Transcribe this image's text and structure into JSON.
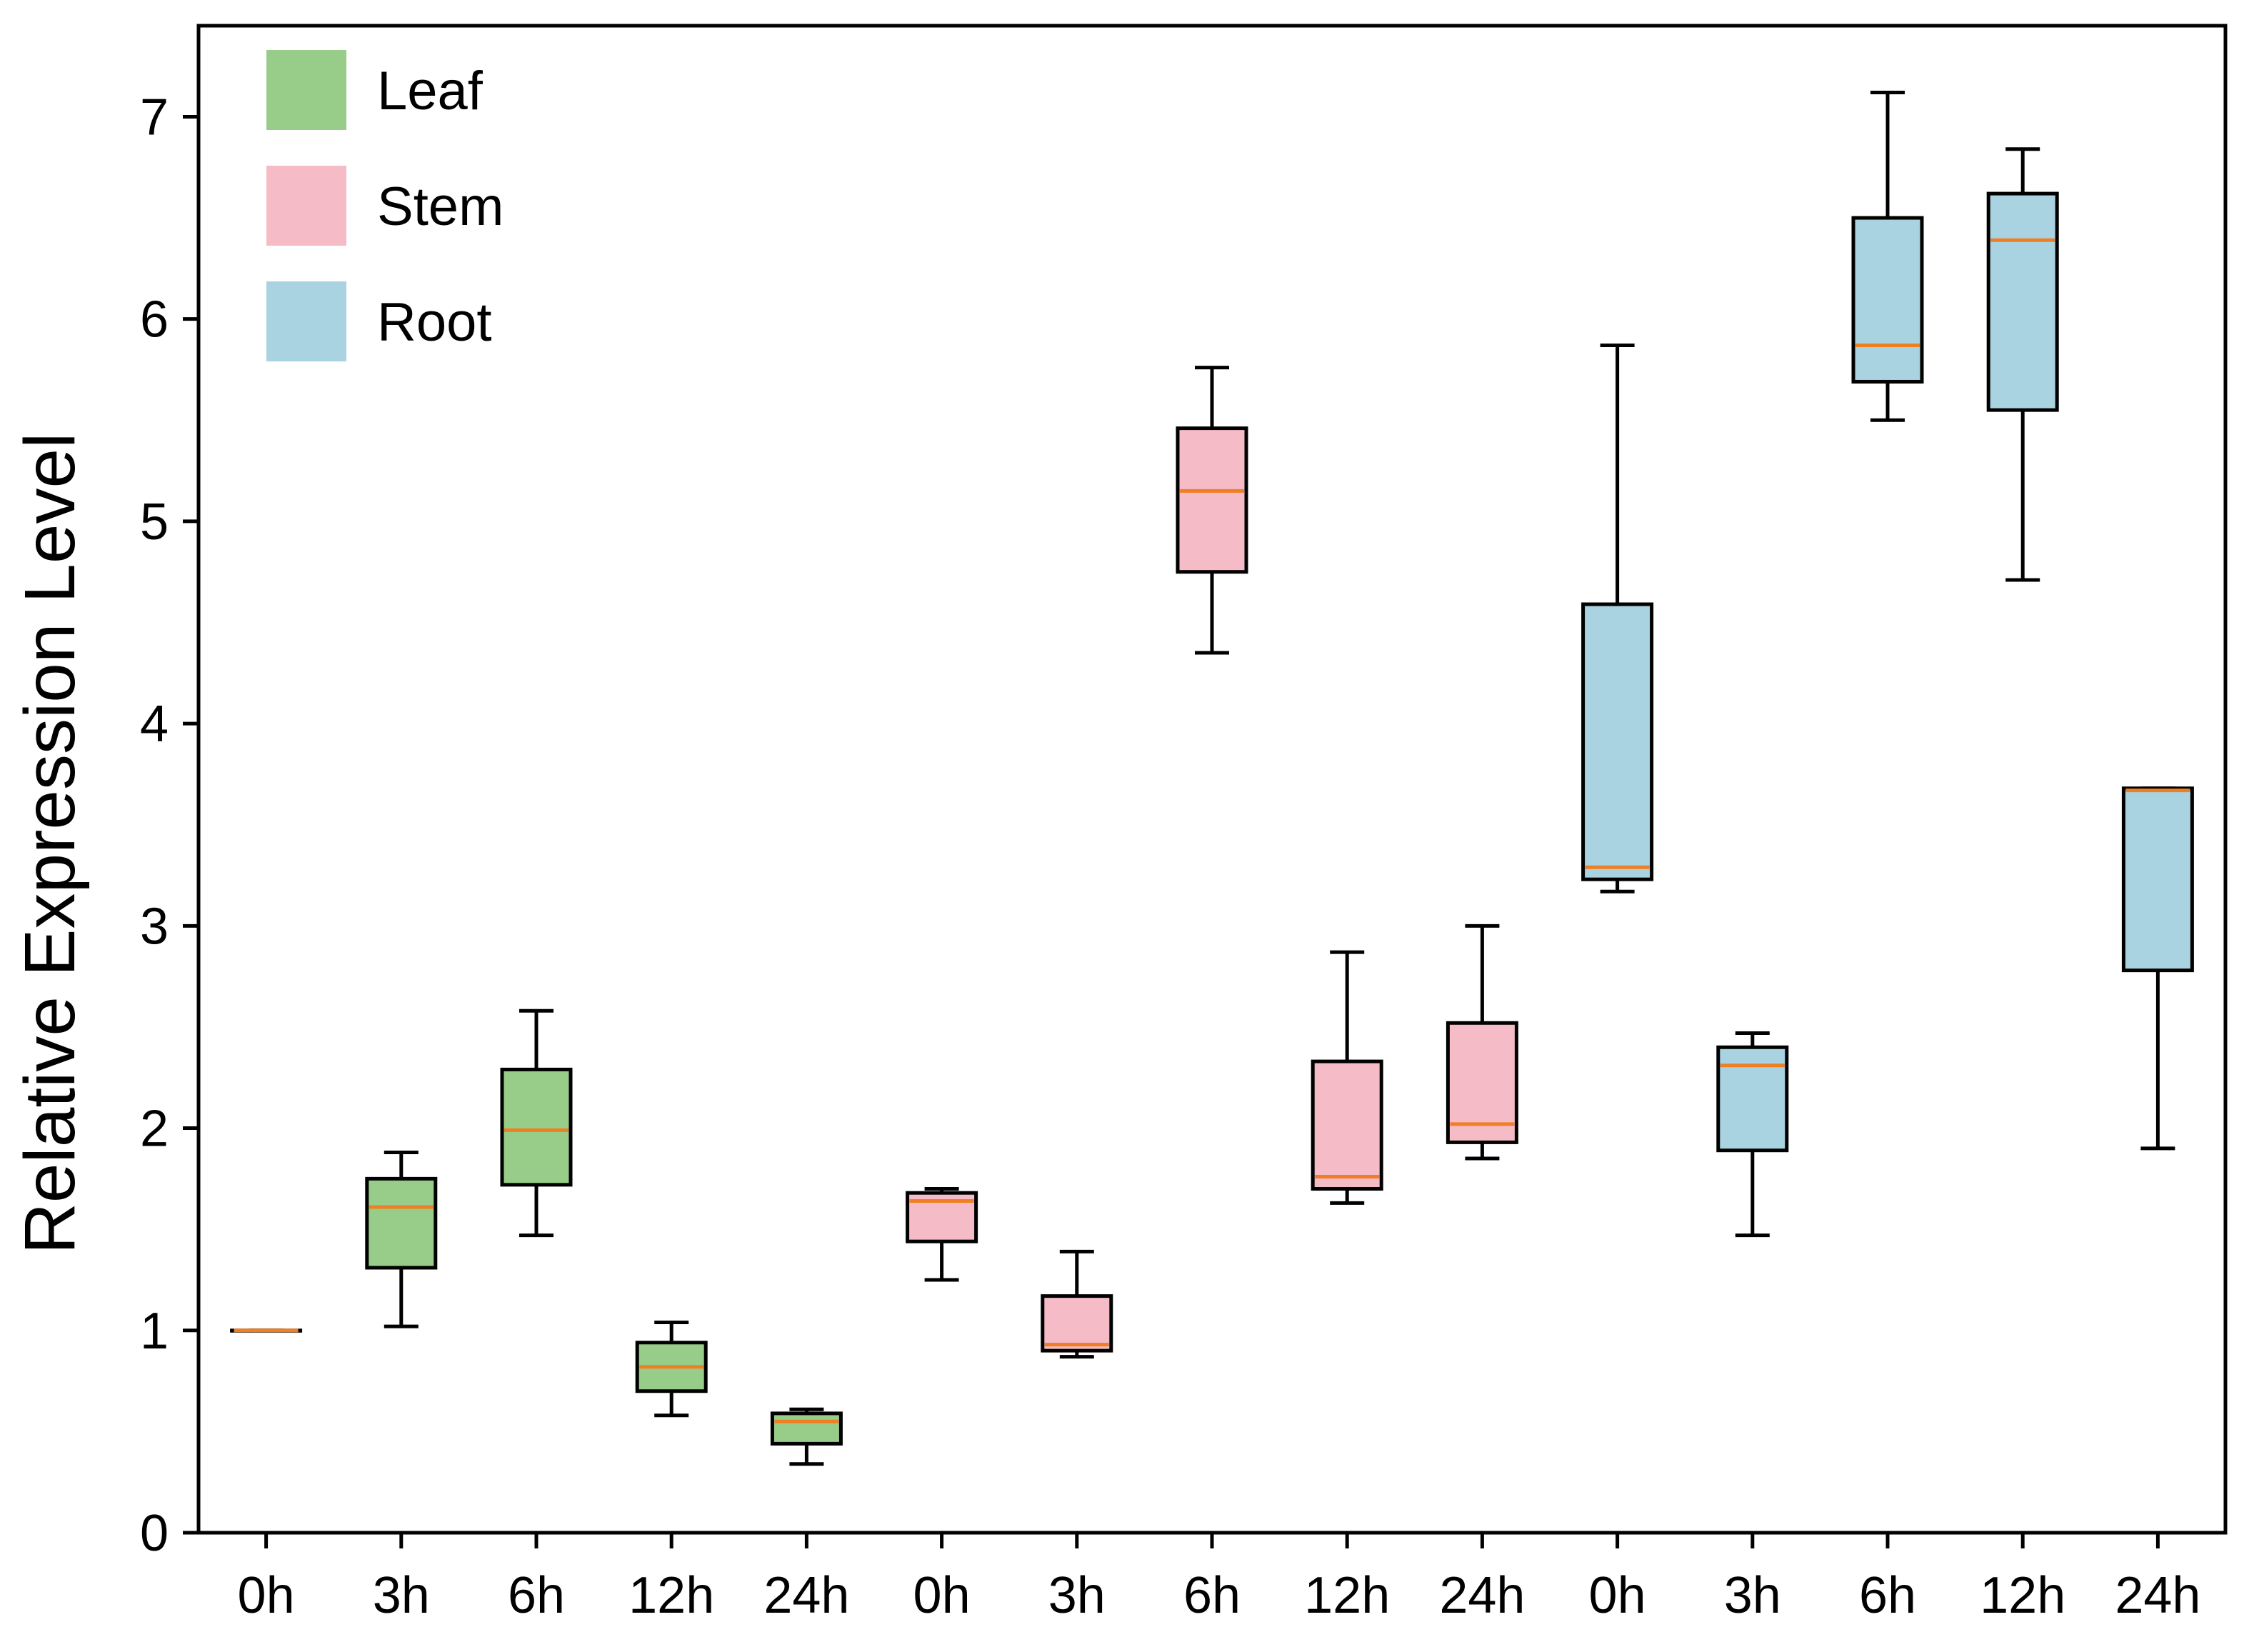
{
  "chart_data": {
    "type": "box",
    "ylabel": "Relative Expression Level",
    "xlabel": "",
    "ylim": [
      0,
      7.45
    ],
    "yticks": [
      0,
      1,
      2,
      3,
      4,
      5,
      6,
      7
    ],
    "legend": {
      "placement": "top-left",
      "entries": [
        "Leaf",
        "Stem",
        "Root"
      ]
    },
    "series": [
      {
        "name": "Leaf",
        "color": "#97cd89",
        "boxes": [
          {
            "category": "0h",
            "min": 1.0,
            "q1": 1.0,
            "median": 1.0,
            "q3": 1.0,
            "max": 1.0
          },
          {
            "category": "3h",
            "min": 1.02,
            "q1": 1.31,
            "median": 1.61,
            "q3": 1.75,
            "max": 1.88
          },
          {
            "category": "6h",
            "min": 1.47,
            "q1": 1.72,
            "median": 1.99,
            "q3": 2.29,
            "max": 2.58
          },
          {
            "category": "12h",
            "min": 0.58,
            "q1": 0.7,
            "median": 0.82,
            "q3": 0.94,
            "max": 1.04
          },
          {
            "category": "24h",
            "min": 0.34,
            "q1": 0.44,
            "median": 0.55,
            "q3": 0.59,
            "max": 0.61
          }
        ]
      },
      {
        "name": "Stem",
        "color": "#f5bcc8",
        "boxes": [
          {
            "category": "0h",
            "min": 1.25,
            "q1": 1.44,
            "median": 1.64,
            "q3": 1.68,
            "max": 1.7
          },
          {
            "category": "3h",
            "min": 0.87,
            "q1": 0.9,
            "median": 0.93,
            "q3": 1.17,
            "max": 1.39
          },
          {
            "category": "6h",
            "min": 4.35,
            "q1": 4.75,
            "median": 5.15,
            "q3": 5.46,
            "max": 5.76
          },
          {
            "category": "12h",
            "min": 1.63,
            "q1": 1.7,
            "median": 1.76,
            "q3": 2.33,
            "max": 2.87
          },
          {
            "category": "24h",
            "min": 1.85,
            "q1": 1.93,
            "median": 2.02,
            "q3": 2.52,
            "max": 3.0
          }
        ]
      },
      {
        "name": "Root",
        "color": "#a9d3e1",
        "boxes": [
          {
            "category": "0h",
            "min": 3.17,
            "q1": 3.23,
            "median": 3.29,
            "q3": 4.59,
            "max": 5.87
          },
          {
            "category": "3h",
            "min": 1.47,
            "q1": 1.89,
            "median": 2.31,
            "q3": 2.4,
            "max": 2.47
          },
          {
            "category": "6h",
            "min": 5.5,
            "q1": 5.69,
            "median": 5.87,
            "q3": 6.5,
            "max": 7.12
          },
          {
            "category": "12h",
            "min": 4.71,
            "q1": 5.55,
            "median": 6.39,
            "q3": 6.62,
            "max": 6.84
          },
          {
            "category": "24h",
            "min": 1.9,
            "q1": 2.78,
            "median": 3.67,
            "q3": 3.68,
            "max": 3.68
          }
        ]
      }
    ]
  }
}
